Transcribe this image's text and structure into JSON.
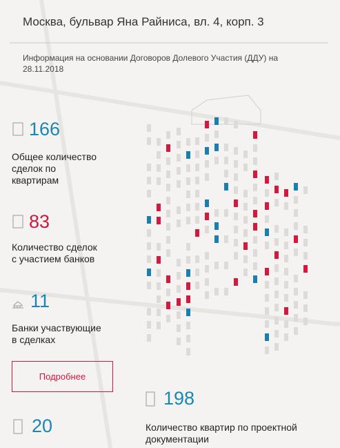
{
  "header": {
    "address": "Москва, бульвар Яна Райниса, вл. 4, корп. 3",
    "info": "Информация на основании Договоров Долевого Участия (ДДУ) на 28.11.2018"
  },
  "stats": [
    {
      "value": "166",
      "lines": [
        "Общее количество",
        "сделок по",
        "квартирам"
      ]
    },
    {
      "value": "83",
      "lines": [
        "Количество сделок",
        "с участием банков"
      ]
    },
    {
      "value": "11",
      "lines": [
        "Банки участвующие",
        "в сделках"
      ]
    }
  ],
  "button": "Подробнее",
  "buildings": {
    "value": "20"
  },
  "apartments": {
    "value": "198",
    "lines": [
      "Количество квартир по проектной",
      "документации"
    ]
  }
}
